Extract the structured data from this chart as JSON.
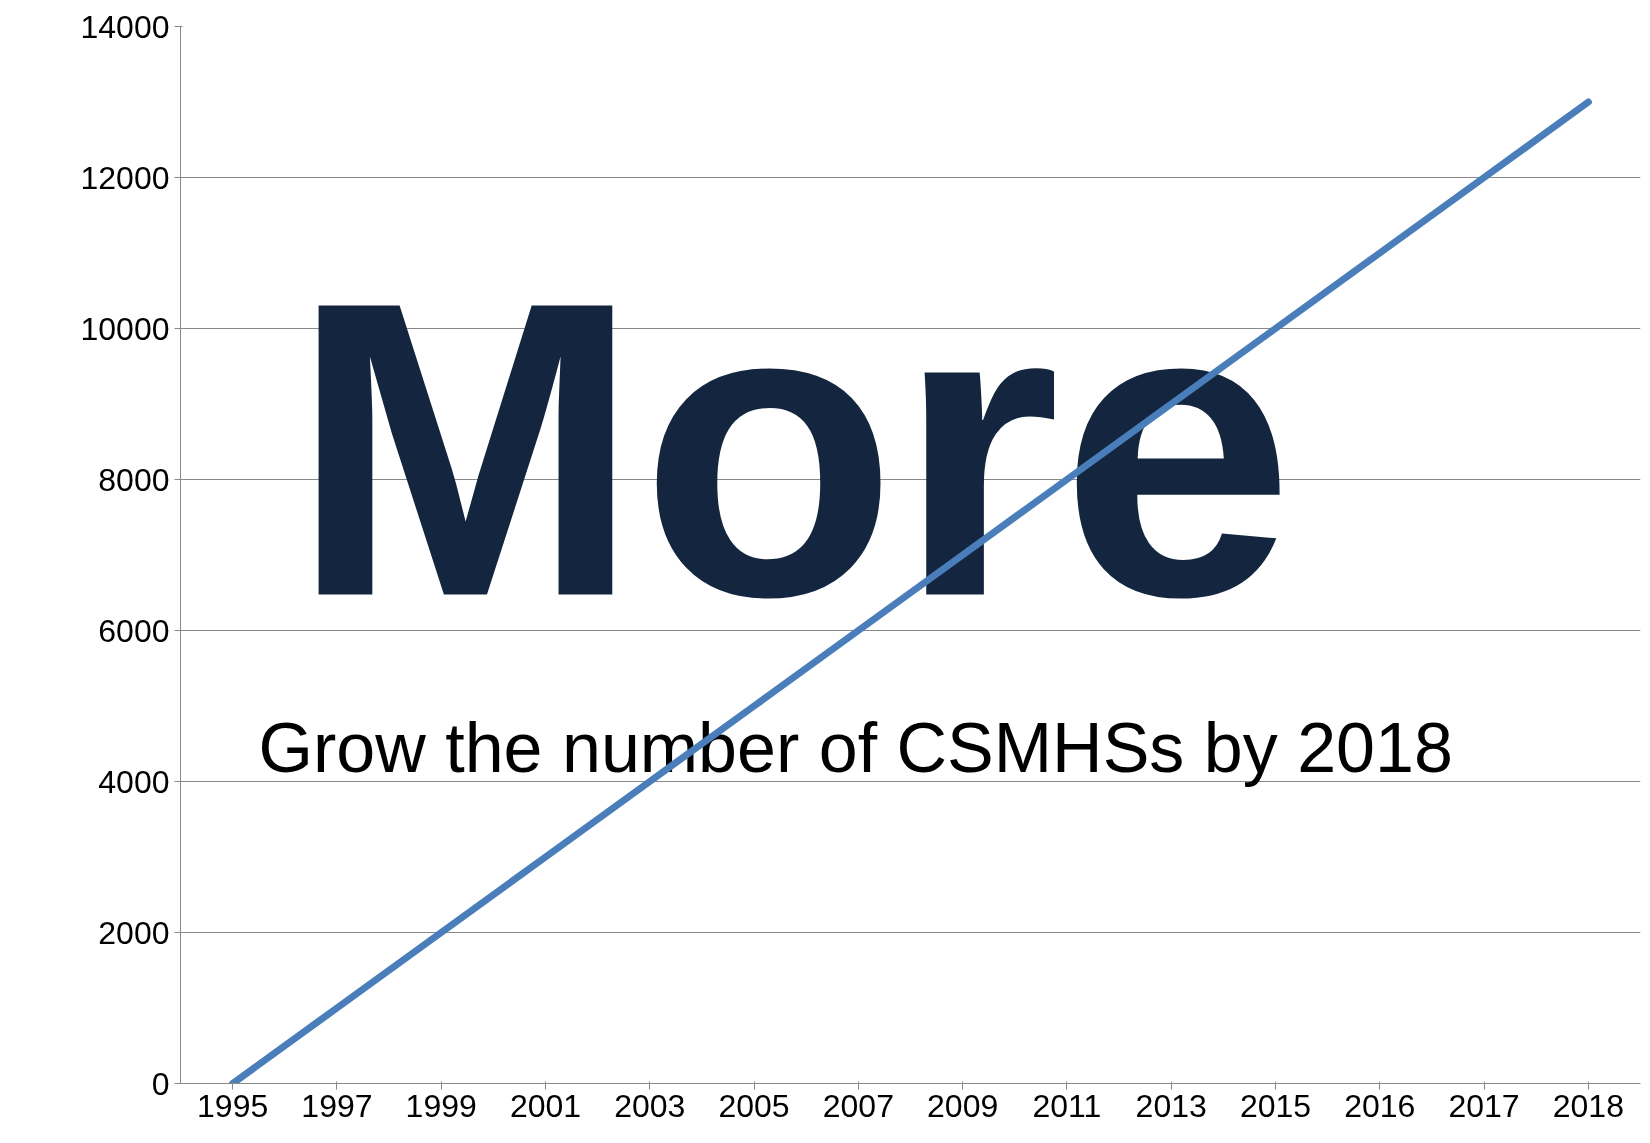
{
  "chart_data": {
    "type": "line",
    "categories": [
      "1995",
      "1997",
      "1999",
      "2001",
      "2003",
      "2005",
      "2007",
      "2009",
      "2011",
      "2013",
      "2015",
      "2016",
      "2017",
      "2018"
    ],
    "series": [
      {
        "color": "#4a7ebb",
        "values": [
          0,
          1000,
          2000,
          3000,
          4000,
          5000,
          6000,
          7000,
          8000,
          9000,
          10000,
          11000,
          12000,
          13000
        ]
      }
    ],
    "ylim": [
      0,
      14000
    ],
    "yticks": [
      0,
      2000,
      4000,
      6000,
      8000,
      10000,
      12000,
      14000
    ],
    "grid": "y",
    "marker": "none",
    "line_style": "solid",
    "annotations": [
      "More",
      "Grow the number of CSMHSs by 2018"
    ]
  }
}
